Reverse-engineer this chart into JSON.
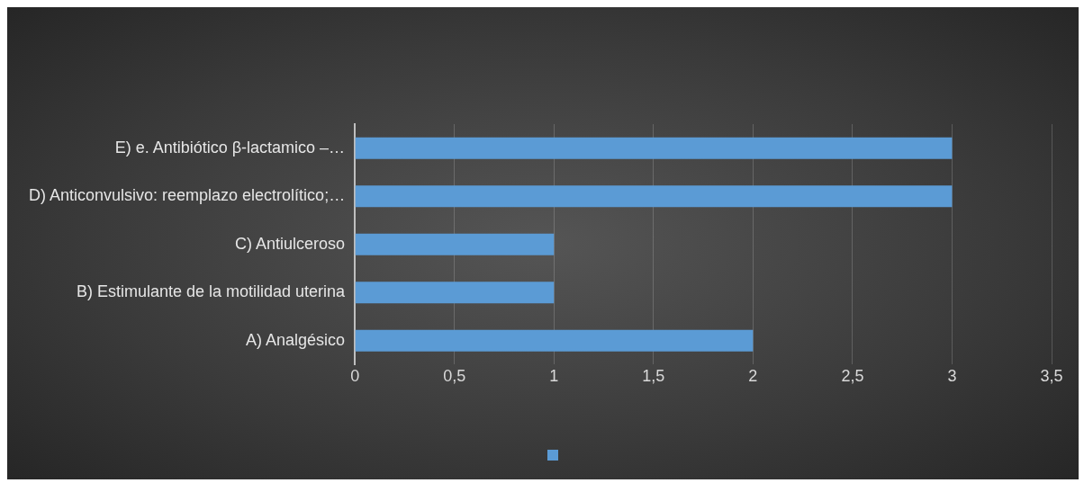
{
  "chart_data": {
    "type": "bar",
    "orientation": "horizontal",
    "categories": [
      "E) e. Antibiótico β-lactamico –…",
      "D) Anticonvulsivo: reemplazo electrolítico;…",
      "C) Antiulceroso",
      "B) Estimulante de la motilidad uterina",
      "A) Analgésico"
    ],
    "series": [
      {
        "color": "#5b9bd5",
        "values": [
          3,
          3,
          1,
          1,
          2
        ]
      }
    ],
    "xlim": [
      0,
      3.5
    ],
    "xticks": [
      0,
      {
        "value": 0.5,
        "label": "0,5"
      },
      1,
      {
        "value": 1.5,
        "label": "1,5"
      },
      2,
      {
        "value": 2.5,
        "label": "2,5"
      },
      3,
      {
        "value": 3.5,
        "label": "3,5"
      }
    ],
    "grid": "x"
  }
}
